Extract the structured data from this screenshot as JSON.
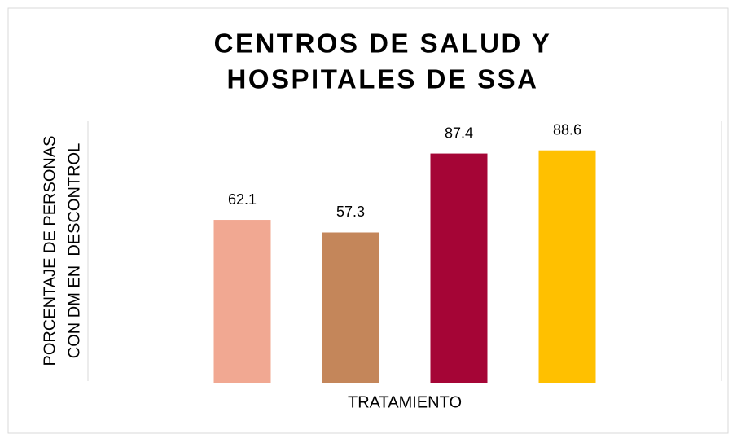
{
  "chart_data": {
    "type": "bar",
    "title": [
      "CENTROS DE SALUD Y",
      "HOSPITALES DE SSA"
    ],
    "xlabel": "TRATAMIENTO",
    "ylabel": [
      "PORCENTAJE DE PERSONAS",
      "CON DM EN  DESCONTROL"
    ],
    "categories": [
      null,
      null,
      null,
      null
    ],
    "values": [
      62.1,
      57.3,
      87.4,
      88.6
    ],
    "colors": [
      "#f1a892",
      "#c4865a",
      "#a50536",
      "#ffc000"
    ],
    "ylim": [
      0,
      100
    ]
  }
}
